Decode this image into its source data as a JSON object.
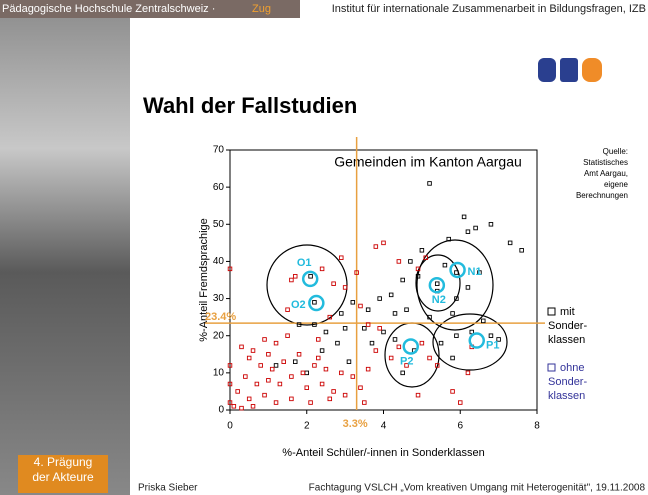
{
  "slide": {
    "header_left": "Pädagogische Hochschule Zentralschweiz ·",
    "header_place": "Zug",
    "header_right": "Institut für internationale Zusammenarbeit in Bildungsfragen, IZB",
    "title": "Wahl der Fallstudien",
    "section": "4. Prägung der Akteure",
    "footer_author": "Priska Sieber",
    "footer_event": "Fachtagung VSLCH „Vom kreativen Umgang mit Heterogenität\", 19.11.2008",
    "source": [
      "Quelle:",
      "Statistisches",
      "Amt Aargau,",
      "eigene",
      "Berechnungen"
    ]
  },
  "chart_data": {
    "type": "scatter",
    "title": "Gemeinden im Kanton Aargau",
    "xlabel": "%-Anteil Schüler/-innen in Sonderklassen",
    "ylabel": "%-Anteil Fremdsprachige",
    "xlim": [
      0,
      8
    ],
    "ylim": [
      0,
      70
    ],
    "xticks": [
      0,
      2,
      4,
      6,
      8
    ],
    "yticks": [
      0,
      10,
      20,
      30,
      40,
      50,
      60,
      70
    ],
    "reference_x": {
      "value": 3.3,
      "label": "3.3%"
    },
    "reference_y": {
      "value": 23.4,
      "label": "23.4%"
    },
    "reference_color": "#e8a040",
    "series": [
      {
        "name": "mit Sonder-klassen",
        "color": "#000000",
        "x": [
          6.1,
          5.2,
          6.8,
          7.3,
          7.6,
          6.4,
          6.2,
          5.7,
          5.0,
          4.7,
          4.9,
          5.6,
          6.5,
          6.2,
          5.9,
          5.4,
          4.5,
          4.2,
          3.9,
          3.6,
          3.2,
          2.9,
          3.5,
          3.0,
          2.5,
          2.2,
          1.8,
          4.3,
          4.6,
          5.2,
          5.8,
          6.6,
          7.0,
          6.8,
          6.3,
          5.5,
          4.8,
          4.3,
          4.0,
          3.7,
          2.8,
          2.4,
          1.7,
          1.2,
          2.0,
          3.1,
          4.5,
          5.8,
          5.9,
          2.1,
          2.2,
          5.4,
          5.9
        ],
        "values": [
          52,
          61,
          50,
          45,
          43,
          49,
          48,
          46,
          43,
          40,
          36,
          39,
          37,
          33,
          30,
          32,
          35,
          31,
          30,
          27,
          29,
          26,
          22,
          22,
          21,
          23,
          23,
          26,
          27,
          25,
          26,
          24,
          19,
          20,
          21,
          18,
          16,
          19,
          21,
          18,
          18,
          16,
          13,
          12,
          10,
          13,
          10,
          14,
          20,
          36,
          29,
          34,
          37
        ]
      },
      {
        "name": "ohne Sonder-klassen",
        "color": "#cc0000",
        "x": [
          4.0,
          3.8,
          2.9,
          2.4,
          2.7,
          1.7,
          1.6,
          4.4,
          3.3,
          3.0,
          3.4,
          4.9,
          5.1,
          3.6,
          3.9,
          2.6,
          1.5,
          1.2,
          0.9,
          0.6,
          0.3,
          0.5,
          0.8,
          1.1,
          1.4,
          1.8,
          2.2,
          2.5,
          2.9,
          3.2,
          3.6,
          1.0,
          1.3,
          1.6,
          2.0,
          2.4,
          2.7,
          3.0,
          3.4,
          0.4,
          0.7,
          0.2,
          0.5,
          0.9,
          1.2,
          1.6,
          2.1,
          2.6,
          3.5,
          0.1,
          0.3,
          0.6,
          1.9,
          2.3,
          1.0,
          3.8,
          4.2,
          4.6,
          5.2,
          5.4,
          6.2,
          6.0,
          5.8,
          4.9,
          0.0,
          0.0,
          0.0,
          0.0,
          5.0,
          4.4,
          1.5,
          2.3,
          6.3
        ],
        "values": [
          45,
          44,
          41,
          38,
          34,
          36,
          35,
          40,
          37,
          33,
          28,
          38,
          41,
          23,
          22,
          25,
          20,
          18,
          19,
          16,
          17,
          14,
          12,
          11,
          13,
          15,
          12,
          11,
          10,
          9,
          11,
          8,
          7,
          9,
          6,
          7,
          5,
          4,
          6,
          9,
          7,
          5,
          3,
          4,
          2,
          3,
          2,
          3,
          2,
          1,
          0.5,
          1,
          10,
          14,
          15,
          16,
          14,
          12,
          14,
          12,
          10,
          2,
          5,
          4,
          12,
          38,
          7,
          2,
          18,
          17,
          27,
          19,
          17
        ]
      }
    ],
    "highlighted": [
      {
        "label": "O1",
        "x": 2.09,
        "y": 35.3
      },
      {
        "label": "O2",
        "x": 2.25,
        "y": 28.8
      },
      {
        "label": "N1",
        "x": 5.93,
        "y": 37.7
      },
      {
        "label": "N2",
        "x": 5.39,
        "y": 33.6
      },
      {
        "label": "P1",
        "x": 6.43,
        "y": 18.7
      },
      {
        "label": "P2",
        "x": 4.71,
        "y": 17.1
      }
    ],
    "highlight_color": "#22bbdd"
  }
}
